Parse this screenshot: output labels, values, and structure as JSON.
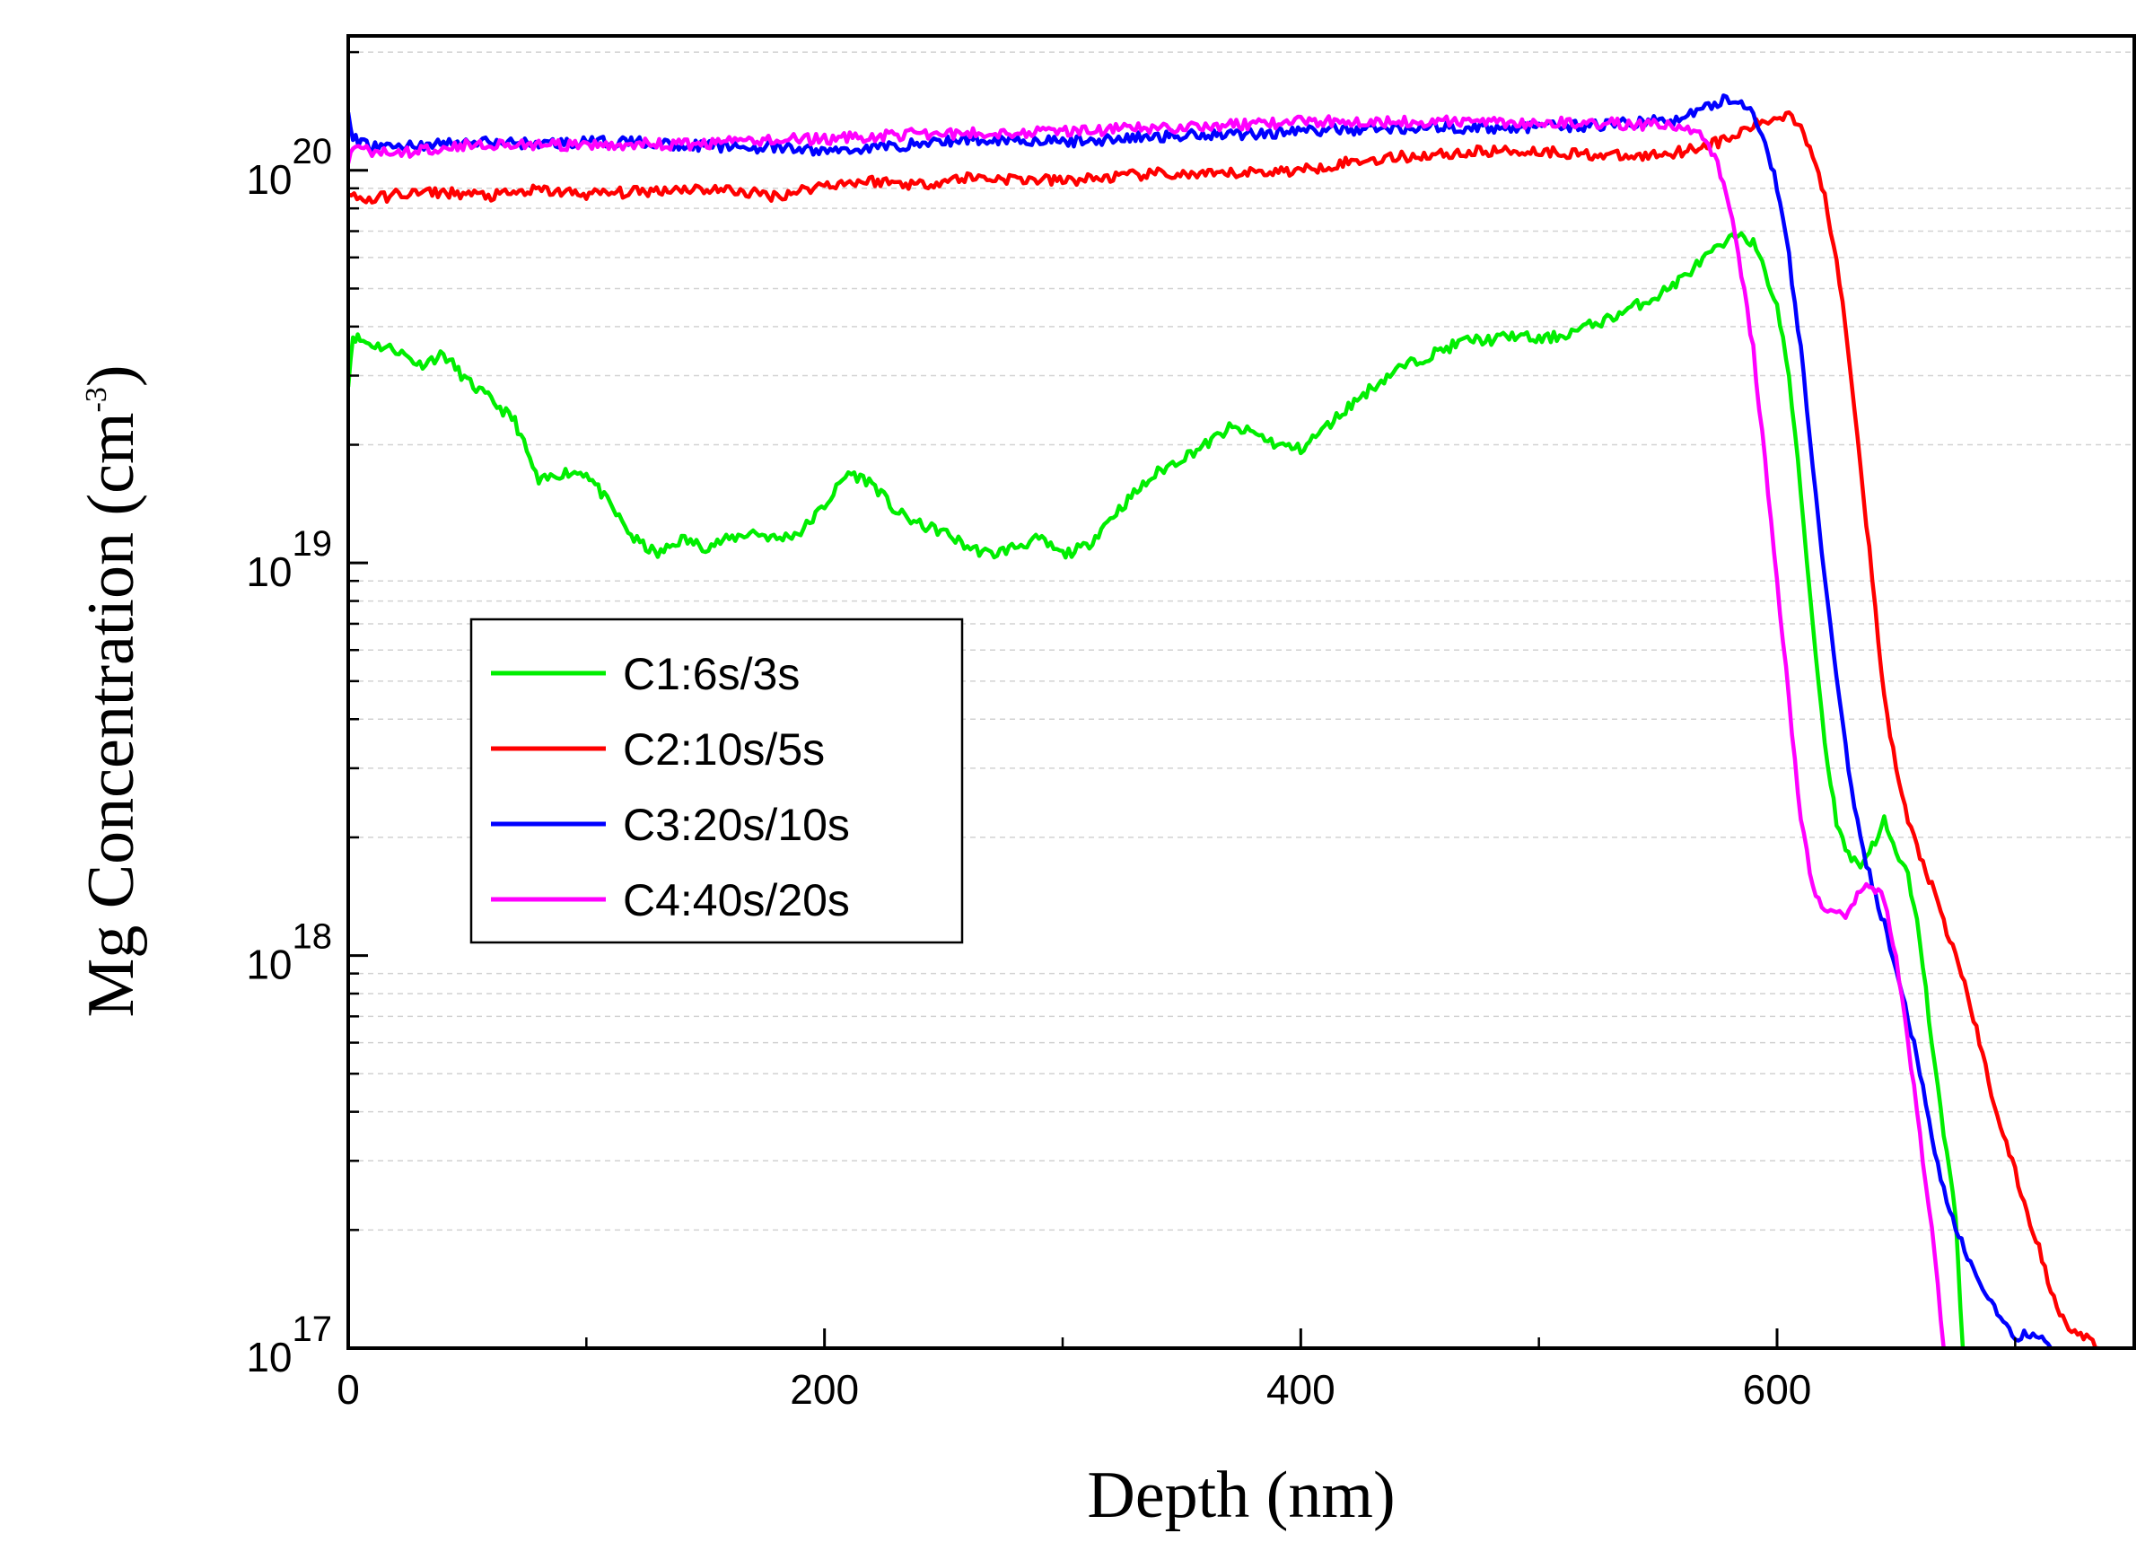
{
  "chart_data": {
    "type": "line",
    "title": "",
    "xlabel": "Depth (nm)",
    "ylabel": "Mg Concentration (cm",
    "ylabel_exponent": "-3",
    "ylabel_close": ")",
    "y_scale": "log",
    "xlim": [
      0,
      750
    ],
    "ylim": [
      1e+17,
      2.2e+20
    ],
    "grid": true,
    "legend_position": "left-middle",
    "x_ticks": [
      "0",
      "200",
      "400",
      "600"
    ],
    "y_ticks": [
      {
        "base": "10",
        "exp": "17"
      },
      {
        "base": "10",
        "exp": "18"
      },
      {
        "base": "10",
        "exp": "19"
      },
      {
        "base": "10",
        "exp": "20"
      }
    ],
    "series": [
      {
        "name": "C1:6s/3s",
        "color": "#00ee00",
        "x": [
          0,
          2,
          5,
          10,
          20,
          30,
          40,
          50,
          60,
          70,
          80,
          90,
          100,
          110,
          120,
          130,
          140,
          150,
          160,
          170,
          180,
          190,
          200,
          210,
          220,
          230,
          240,
          250,
          260,
          270,
          280,
          290,
          300,
          310,
          320,
          330,
          340,
          350,
          360,
          370,
          380,
          390,
          400,
          410,
          420,
          430,
          440,
          450,
          460,
          470,
          480,
          490,
          500,
          510,
          520,
          530,
          540,
          550,
          560,
          570,
          580,
          585,
          590,
          595,
          600,
          605,
          610,
          615,
          620,
          625,
          630,
          635,
          640,
          645,
          650,
          655,
          660,
          665,
          670,
          675,
          678
        ],
        "y": [
          2.9e+19,
          3.8e+19,
          3.7e+19,
          3.6e+19,
          3.5e+19,
          3.2e+19,
          3.4e+19,
          2.9e+19,
          2.6e+19,
          2.3e+19,
          1.6e+19,
          1.7e+19,
          1.7e+19,
          1.4e+19,
          1.15e+19,
          1.05e+19,
          1.15e+19,
          1.1e+19,
          1.15e+19,
          1.2e+19,
          1.15e+19,
          1.2e+19,
          1.4e+19,
          1.7e+19,
          1.6e+19,
          1.35e+19,
          1.25e+19,
          1.2e+19,
          1.1e+19,
          1.05e+19,
          1.1e+19,
          1.15e+19,
          1.05e+19,
          1.1e+19,
          1.3e+19,
          1.5e+19,
          1.7e+19,
          1.85e+19,
          2e+19,
          2.2e+19,
          2.15e+19,
          2e+19,
          1.95e+19,
          2.2e+19,
          2.5e+19,
          2.8e+19,
          3.1e+19,
          3.3e+19,
          3.5e+19,
          3.7e+19,
          3.7e+19,
          3.8e+19,
          3.7e+19,
          3.8e+19,
          4e+19,
          4.2e+19,
          4.5e+19,
          4.8e+19,
          5.3e+19,
          6e+19,
          6.6e+19,
          7e+19,
          6.5e+19,
          5.5e+19,
          4.5e+19,
          3e+19,
          1.5e+19,
          7e+18,
          3.5e+18,
          2.2e+18,
          1.8e+18,
          1.7e+18,
          1.9e+18,
          2.2e+18,
          1.8e+18,
          1.6e+18,
          1.1e+18,
          6e+17,
          3.5e+17,
          2.2e+17,
          1e+17
        ]
      },
      {
        "name": "C2:10s/5s",
        "color": "#ff0000",
        "x": [
          0,
          10,
          20,
          40,
          60,
          80,
          100,
          120,
          140,
          160,
          180,
          200,
          220,
          240,
          260,
          280,
          300,
          320,
          340,
          360,
          380,
          400,
          420,
          440,
          460,
          480,
          500,
          520,
          540,
          560,
          580,
          590,
          600,
          605,
          610,
          615,
          620,
          625,
          630,
          635,
          640,
          645,
          650,
          655,
          660,
          665,
          670,
          675,
          680,
          685,
          690,
          695,
          700,
          705,
          710,
          715,
          720,
          725,
          730,
          735
        ],
        "y": [
          8.6e+19,
          8.4e+19,
          8.7e+19,
          8.8e+19,
          8.6e+19,
          8.9e+19,
          8.7e+19,
          8.8e+19,
          9e+19,
          8.9e+19,
          8.6e+19,
          9.2e+19,
          9.4e+19,
          9.2e+19,
          9.6e+19,
          9.5e+19,
          9.4e+19,
          9.6e+19,
          9.8e+19,
          9.7e+19,
          9.9e+19,
          1e+20,
          1.05e+20,
          1.08e+20,
          1.1e+20,
          1.12e+20,
          1.12e+20,
          1.1e+20,
          1.08e+20,
          1.12e+20,
          1.2e+20,
          1.3e+20,
          1.36e+20,
          1.4e+20,
          1.3e+20,
          1.1e+20,
          8.5e+19,
          6e+19,
          3.5e+19,
          1.8e+19,
          9e+18,
          4.5e+18,
          3e+18,
          2.2e+18,
          1.8e+18,
          1.5e+18,
          1.2e+18,
          1e+18,
          8e+17,
          6e+17,
          4.5e+17,
          3.5e+17,
          2.8e+17,
          2.2e+17,
          1.8e+17,
          1.4e+17,
          1.2e+17,
          1.1e+17,
          1.05e+17,
          1e+17
        ]
      },
      {
        "name": "C3:20s/10s",
        "color": "#0000ff",
        "x": [
          0,
          2,
          10,
          20,
          40,
          60,
          80,
          100,
          120,
          140,
          160,
          180,
          200,
          220,
          240,
          260,
          280,
          300,
          320,
          340,
          360,
          380,
          400,
          420,
          440,
          460,
          480,
          500,
          520,
          540,
          560,
          570,
          580,
          585,
          590,
          595,
          600,
          605,
          610,
          615,
          620,
          625,
          630,
          635,
          640,
          645,
          650,
          655,
          660,
          665,
          670,
          675,
          680,
          685,
          690,
          695,
          700,
          705,
          710,
          715
        ],
        "y": [
          1.4e+20,
          1.2e+20,
          1.15e+20,
          1.15e+20,
          1.17e+20,
          1.18e+20,
          1.17e+20,
          1.18e+20,
          1.18e+20,
          1.16e+20,
          1.15e+20,
          1.14e+20,
          1.12e+20,
          1.14e+20,
          1.17e+20,
          1.2e+20,
          1.2e+20,
          1.18e+20,
          1.2e+20,
          1.22e+20,
          1.24e+20,
          1.24e+20,
          1.26e+20,
          1.27e+20,
          1.28e+20,
          1.29e+20,
          1.28e+20,
          1.29e+20,
          1.3e+20,
          1.32e+20,
          1.35e+20,
          1.45e+20,
          1.52e+20,
          1.5e+20,
          1.4e+20,
          1.2e+20,
          9e+19,
          6e+19,
          3.5e+19,
          1.8e+19,
          9e+18,
          5e+18,
          3e+18,
          2e+18,
          1.5e+18,
          1.2e+18,
          9e+17,
          7e+17,
          5e+17,
          3.5e+17,
          2.5e+17,
          2e+17,
          1.7e+17,
          1.5e+17,
          1.3e+17,
          1.15e+17,
          1.05e+17,
          1.1e+17,
          1.05e+17,
          1e+17
        ]
      },
      {
        "name": "C4:40s/20s",
        "color": "#ff00ff",
        "x": [
          0,
          2,
          10,
          20,
          40,
          60,
          80,
          100,
          120,
          140,
          160,
          180,
          200,
          220,
          240,
          260,
          280,
          300,
          320,
          340,
          360,
          380,
          400,
          420,
          440,
          460,
          480,
          500,
          520,
          540,
          560,
          570,
          575,
          580,
          585,
          590,
          595,
          600,
          605,
          610,
          615,
          620,
          625,
          630,
          635,
          640,
          645,
          650,
          655,
          660,
          665,
          670
        ],
        "y": [
          1.05e+20,
          1.15e+20,
          1.12e+20,
          1.1e+20,
          1.15e+20,
          1.17e+20,
          1.16e+20,
          1.15e+20,
          1.17e+20,
          1.16e+20,
          1.18e+20,
          1.2e+20,
          1.2e+20,
          1.22e+20,
          1.24e+20,
          1.24e+20,
          1.25e+20,
          1.26e+20,
          1.27e+20,
          1.28e+20,
          1.3e+20,
          1.31e+20,
          1.33e+20,
          1.34e+20,
          1.33e+20,
          1.33e+20,
          1.33e+20,
          1.32e+20,
          1.32e+20,
          1.31e+20,
          1.3e+20,
          1.2e+20,
          1.05e+20,
          8e+19,
          5.5e+19,
          3.5e+19,
          1.8e+19,
          9e+18,
          4.5e+18,
          2.2e+18,
          1.5e+18,
          1.3e+18,
          1.25e+18,
          1.3e+18,
          1.45e+18,
          1.5e+18,
          1.4e+18,
          1e+18,
          6e+17,
          3.5e+17,
          2e+17,
          1e+17
        ]
      }
    ]
  }
}
